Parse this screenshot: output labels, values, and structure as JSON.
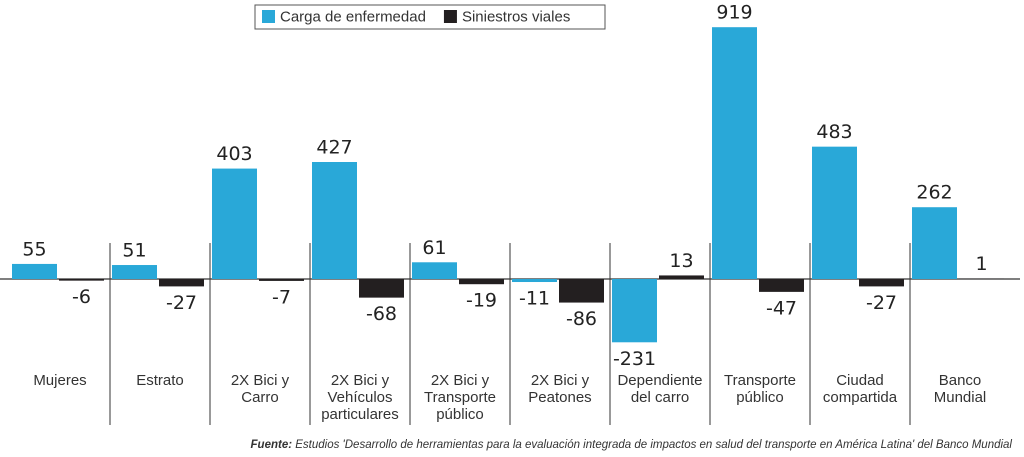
{
  "chart_data": {
    "type": "bar",
    "categories": [
      "Mujeres",
      "Estrato",
      "2X Bici y\nCarro",
      "2X Bici y\nVehículos\nparticulares",
      "2X Bici y\nTransporte\npúblico",
      "2X Bici y\nPeatones",
      "Dependiente\ndel carro",
      "Transporte\npúblico",
      "Ciudad\ncompartida",
      "Banco\nMundial"
    ],
    "series": [
      {
        "name": "Carga de enfermedad",
        "color": "#29a8d8",
        "values": [
          55,
          51,
          403,
          427,
          61,
          -11,
          -231,
          919,
          483,
          262
        ]
      },
      {
        "name": "Siniestros viales",
        "color": "#231f20",
        "values": [
          -6,
          -27,
          -7,
          -68,
          -19,
          -86,
          13,
          -47,
          -27,
          1
        ]
      }
    ],
    "ylim": [
      -250,
      1000
    ],
    "source_label": "Fuente:",
    "source": "Estudios 'Desarrollo de herramientas para la evaluación integrada de impactos en salud del transporte en América Latina' del Banco Mundial"
  }
}
